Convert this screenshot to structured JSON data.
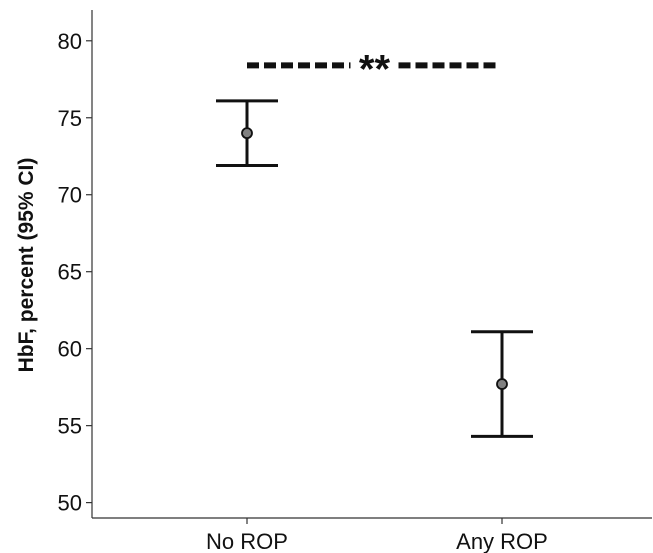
{
  "chart_data": {
    "type": "errorbar",
    "title": "",
    "xlabel": "",
    "ylabel": "HbF, percent (95% CI)",
    "ylim": [
      49,
      82
    ],
    "yticks": [
      50,
      55,
      60,
      65,
      70,
      75,
      80
    ],
    "categories": [
      "No ROP",
      "Any ROP"
    ],
    "points": [
      {
        "category": "No ROP",
        "mean": 74.0,
        "ci_low": 71.9,
        "ci_high": 76.1
      },
      {
        "category": "Any ROP",
        "mean": 57.7,
        "ci_low": 54.3,
        "ci_high": 61.1
      }
    ],
    "significance": {
      "between": [
        "No ROP",
        "Any ROP"
      ],
      "label": "**",
      "y": 78.4
    },
    "grid": false,
    "colors": {
      "marker_fill": "#808080",
      "line": "#111111"
    }
  }
}
